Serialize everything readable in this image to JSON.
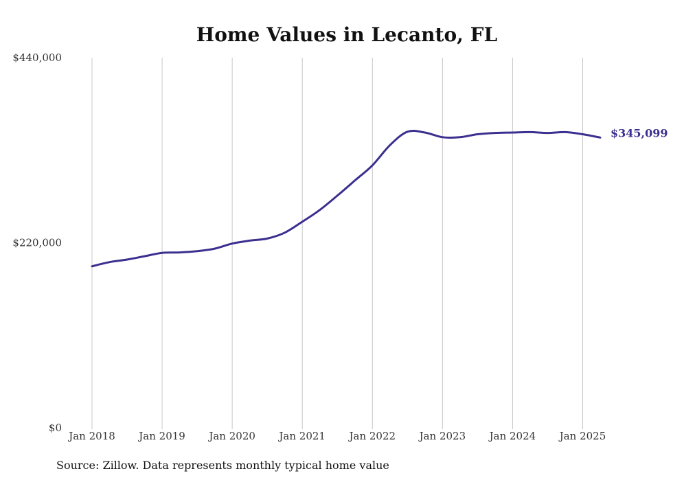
{
  "chart_data": {
    "type": "line",
    "title": "Home Values in Lecanto, FL",
    "source": "Source: Zillow. Data represents monthly typical home value",
    "ylim": [
      0,
      440000
    ],
    "yticks": [
      {
        "value": 0,
        "label": "$0"
      },
      {
        "value": 220000,
        "label": "$220,000"
      },
      {
        "value": 440000,
        "label": "$440,000"
      }
    ],
    "xlim": [
      "2018-01",
      "2025-04"
    ],
    "xticks": [
      {
        "date": "2018-01",
        "label": "Jan 2018"
      },
      {
        "date": "2019-01",
        "label": "Jan 2019"
      },
      {
        "date": "2020-01",
        "label": "Jan 2020"
      },
      {
        "date": "2021-01",
        "label": "Jan 2021"
      },
      {
        "date": "2022-01",
        "label": "Jan 2022"
      },
      {
        "date": "2023-01",
        "label": "Jan 2023"
      },
      {
        "date": "2024-01",
        "label": "Jan 2024"
      },
      {
        "date": "2025-01",
        "label": "Jan 2025"
      }
    ],
    "grid": "vertical",
    "series": [
      {
        "color": "#3b2f8f",
        "end_label": "$345,099",
        "points": [
          {
            "x": "2018-01",
            "y": 192000
          },
          {
            "x": "2018-04",
            "y": 197000
          },
          {
            "x": "2018-07",
            "y": 200000
          },
          {
            "x": "2018-10",
            "y": 204000
          },
          {
            "x": "2019-01",
            "y": 208000
          },
          {
            "x": "2019-04",
            "y": 208500
          },
          {
            "x": "2019-07",
            "y": 210000
          },
          {
            "x": "2019-10",
            "y": 213000
          },
          {
            "x": "2020-01",
            "y": 219000
          },
          {
            "x": "2020-04",
            "y": 222500
          },
          {
            "x": "2020-07",
            "y": 225000
          },
          {
            "x": "2020-10",
            "y": 232000
          },
          {
            "x": "2021-01",
            "y": 245000
          },
          {
            "x": "2021-04",
            "y": 259000
          },
          {
            "x": "2021-07",
            "y": 276000
          },
          {
            "x": "2021-10",
            "y": 294000
          },
          {
            "x": "2022-01",
            "y": 312000
          },
          {
            "x": "2022-04",
            "y": 336000
          },
          {
            "x": "2022-07",
            "y": 352000
          },
          {
            "x": "2022-10",
            "y": 351000
          },
          {
            "x": "2023-01",
            "y": 345500
          },
          {
            "x": "2023-04",
            "y": 345500
          },
          {
            "x": "2023-07",
            "y": 349000
          },
          {
            "x": "2023-10",
            "y": 350500
          },
          {
            "x": "2024-01",
            "y": 351000
          },
          {
            "x": "2024-04",
            "y": 351500
          },
          {
            "x": "2024-07",
            "y": 350500
          },
          {
            "x": "2024-10",
            "y": 351500
          },
          {
            "x": "2025-01",
            "y": 349000
          },
          {
            "x": "2025-04",
            "y": 345099
          }
        ]
      }
    ]
  }
}
